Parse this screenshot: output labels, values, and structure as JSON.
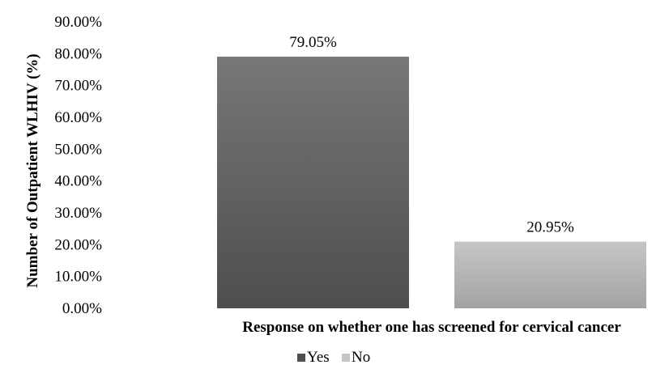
{
  "chart_data": {
    "type": "bar",
    "title": "",
    "xlabel": "Response on whether one has screened for cervical cancer",
    "ylabel": "Number of Outpatient WLHIV (%)",
    "categories": [
      "Yes",
      "No"
    ],
    "values": [
      79.05,
      20.95
    ],
    "data_labels": [
      "79.05%",
      "20.95%"
    ],
    "ylim": [
      0,
      90
    ],
    "y_ticks": [
      "0.00%",
      "10.00%",
      "20.00%",
      "30.00%",
      "40.00%",
      "50.00%",
      "60.00%",
      "70.00%",
      "80.00%",
      "90.00%"
    ],
    "grid": false,
    "legend": {
      "position": "bottom",
      "entries": [
        "Yes",
        "No"
      ]
    },
    "colors": {
      "Yes_top": "#777777",
      "Yes_bottom": "#4e4e4e",
      "No_top": "#c6c6c6",
      "No_bottom": "#a3a3a3"
    }
  }
}
